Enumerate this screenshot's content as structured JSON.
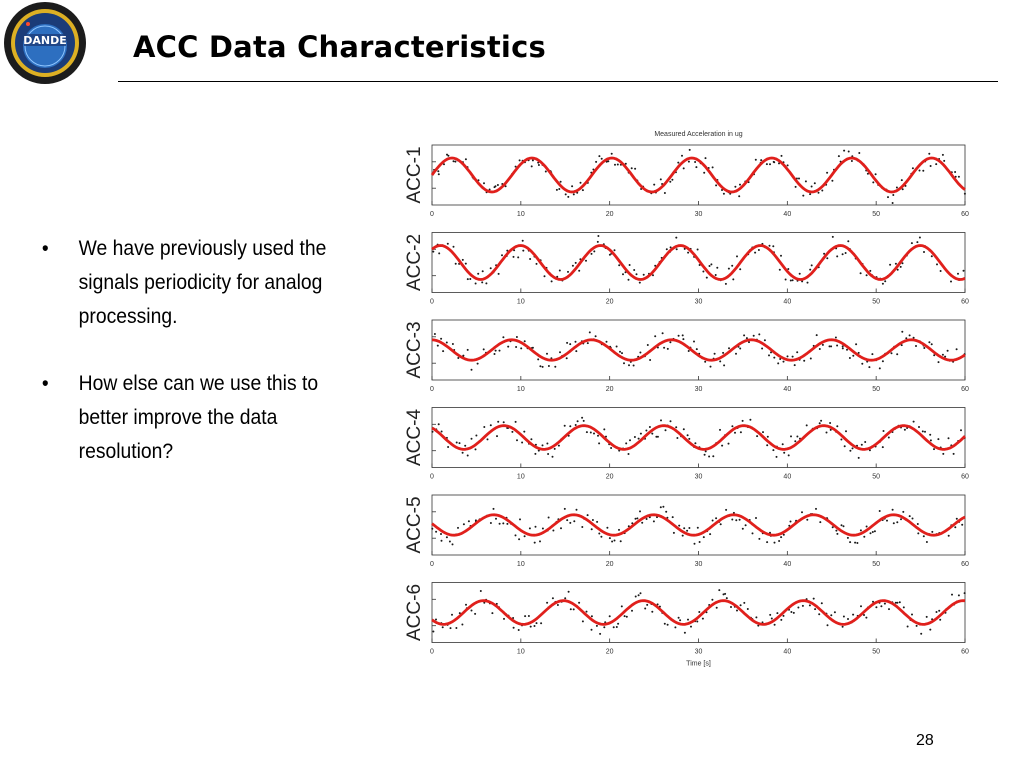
{
  "slide": {
    "title": "ACC Data Characteristics",
    "page_number": "28",
    "logo": {
      "name": "DANDE",
      "ring_text": "CU Boulder · COSGC · Drag and Atmospheric Neutral Density Explorer"
    },
    "bullets": [
      "We have previously used the signals periodicity for analog processing.",
      "How else can we use this to better improve the data resolution?"
    ],
    "bullet_symbol": "•"
  },
  "chart_data": {
    "type": "line",
    "title": "Measured Acceleration in ug",
    "xlabel": "Time [s]",
    "xlim": [
      0,
      60
    ],
    "x_ticks": [
      0,
      10,
      20,
      30,
      40,
      50,
      60
    ],
    "colors": {
      "fit": "#e0201c",
      "measured": "#1a1a1a",
      "frame": "#333333"
    },
    "series": [
      {
        "name": "ACC-1",
        "fit_amplitude": 1.0,
        "period_s": 9.0,
        "phase": 0.0
      },
      {
        "name": "ACC-2",
        "fit_amplitude": 1.0,
        "period_s": 9.0,
        "phase": 0.9
      },
      {
        "name": "ACC-3",
        "fit_amplitude": 0.6,
        "period_s": 9.0,
        "phase": 1.6
      },
      {
        "name": "ACC-4",
        "fit_amplitude": 0.7,
        "period_s": 9.0,
        "phase": 2.2
      },
      {
        "name": "ACC-5",
        "fit_amplitude": 0.6,
        "period_s": 9.0,
        "phase": 3.0
      },
      {
        "name": "ACC-6",
        "fit_amplitude": 0.7,
        "period_s": 9.0,
        "phase": 3.8
      }
    ]
  }
}
